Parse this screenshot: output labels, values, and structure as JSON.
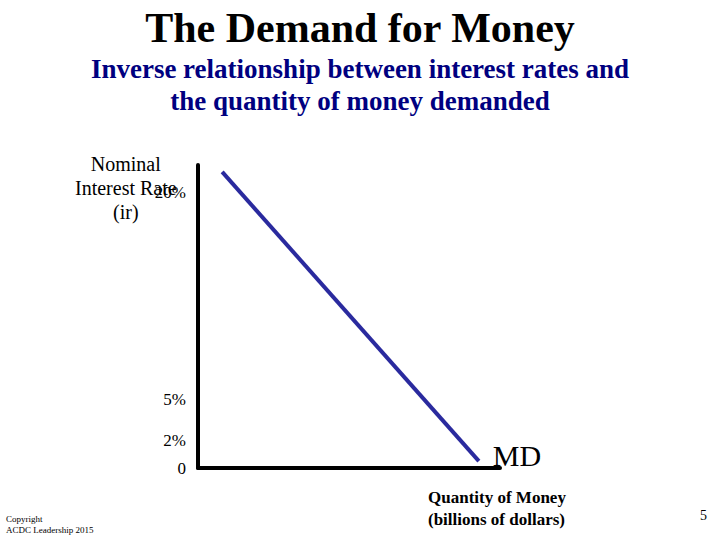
{
  "chart_data": {
    "type": "line",
    "title": "The Demand for Money",
    "subtitle": "Inverse relationship between interest rates and\nthe quantity of money demanded",
    "x_label": "Quantity of Money\n(billions of dollars)",
    "y_label": "Nominal\nInterest Rate\n(ir)",
    "x": [
      0.8,
      9.3
    ],
    "series": [
      {
        "name": "MD",
        "color": "#2a2a9e",
        "values": [
          21.5,
          0.5
        ]
      }
    ],
    "xlim": [
      0,
      10
    ],
    "ylim": [
      0,
      22
    ],
    "yticks": [
      0,
      {
        "value": 2,
        "label": "2%"
      },
      {
        "value": 5,
        "label": "5%"
      },
      {
        "value": 20,
        "label": "20%"
      }
    ],
    "tick_labels": "y",
    "grid": false,
    "annotations": [
      "Copyright\nACDC Leadership 2015",
      "5"
    ]
  }
}
